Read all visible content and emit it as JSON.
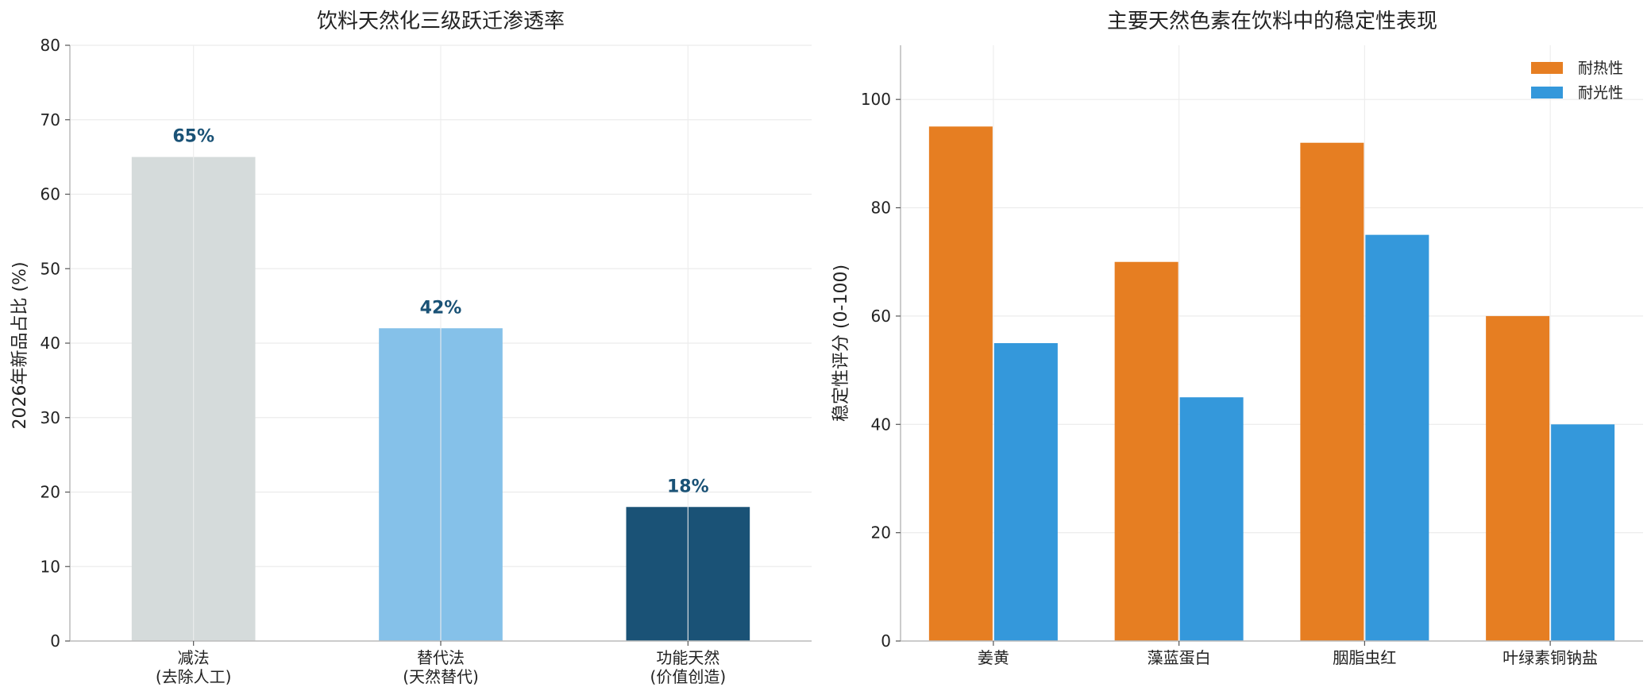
{
  "chart_data": [
    {
      "type": "bar",
      "title": "饮料天然化三级跃迁渗透率",
      "xlabel": "",
      "ylabel": "2026年新品占比 (%)",
      "categories": [
        [
          "减法",
          "(去除人工)"
        ],
        [
          "替代法",
          "(天然替代)"
        ],
        [
          "功能天然",
          "(价值创造)"
        ]
      ],
      "values": [
        65,
        42,
        18
      ],
      "data_labels": [
        "65%",
        "42%",
        "18%"
      ],
      "colors": [
        "#d5dbdb",
        "#85c1e9",
        "#1a5276"
      ],
      "label_color": "#1a5276",
      "ylim": [
        0,
        80
      ],
      "yticks": [
        0,
        10,
        20,
        30,
        40,
        50,
        60,
        70,
        80
      ],
      "grid": true
    },
    {
      "type": "bar",
      "title": "主要天然色素在饮料中的稳定性表现",
      "xlabel": "",
      "ylabel": "稳定性评分 (0-100)",
      "categories": [
        "姜黄",
        "藻蓝蛋白",
        "胭脂虫红",
        "叶绿素铜钠盐"
      ],
      "series": [
        {
          "name": "耐热性",
          "values": [
            95,
            70,
            92,
            60
          ],
          "color": "#e67e22"
        },
        {
          "name": "耐光性",
          "values": [
            55,
            45,
            75,
            40
          ],
          "color": "#3498db"
        }
      ],
      "ylim": [
        0,
        110
      ],
      "yticks": [
        0,
        20,
        40,
        60,
        80,
        100
      ],
      "legend": "top-right",
      "grid": true
    }
  ]
}
